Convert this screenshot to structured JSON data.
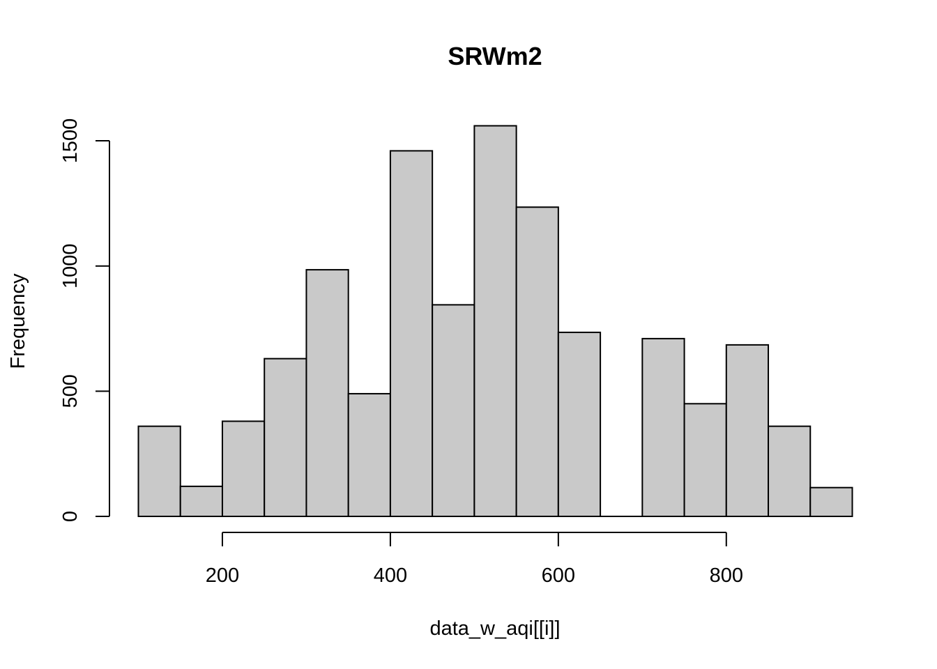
{
  "chart_data": {
    "type": "bar",
    "subtype": "histogram",
    "title": "SRWm2",
    "xlabel": "data_w_aqi[[i]]",
    "ylabel": "Frequency",
    "bar_color": "#c9c9c9",
    "edge_color": "#000000",
    "grid": false,
    "bin_width": 50,
    "bins": [
      {
        "start": 100,
        "end": 150,
        "count": 360
      },
      {
        "start": 150,
        "end": 200,
        "count": 120
      },
      {
        "start": 200,
        "end": 250,
        "count": 380
      },
      {
        "start": 250,
        "end": 300,
        "count": 630
      },
      {
        "start": 300,
        "end": 350,
        "count": 985
      },
      {
        "start": 350,
        "end": 400,
        "count": 490
      },
      {
        "start": 400,
        "end": 450,
        "count": 1460
      },
      {
        "start": 450,
        "end": 500,
        "count": 845
      },
      {
        "start": 500,
        "end": 550,
        "count": 1560
      },
      {
        "start": 550,
        "end": 600,
        "count": 1235
      },
      {
        "start": 600,
        "end": 650,
        "count": 735
      },
      {
        "start": 650,
        "end": 700,
        "count": 0
      },
      {
        "start": 700,
        "end": 750,
        "count": 710
      },
      {
        "start": 750,
        "end": 800,
        "count": 450
      },
      {
        "start": 800,
        "end": 850,
        "count": 685
      },
      {
        "start": 850,
        "end": 900,
        "count": 360
      },
      {
        "start": 900,
        "end": 950,
        "count": 115
      }
    ],
    "xlim": [
      100,
      950
    ],
    "ylim": [
      0,
      1560
    ],
    "x_ticks": [
      200,
      400,
      600,
      800
    ],
    "y_ticks": [
      0,
      500,
      1000,
      1500
    ]
  }
}
